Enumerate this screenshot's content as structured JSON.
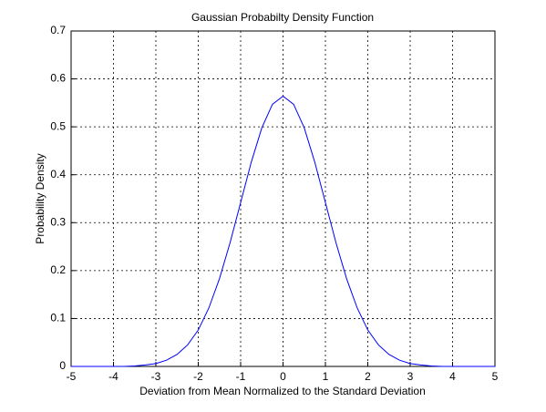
{
  "chart_data": {
    "type": "line",
    "title": "Gaussian Probabilty Density Function",
    "xlabel": "Deviation from Mean Normalized to the Standard Deviation",
    "ylabel": "Probability Density",
    "x": [
      -5,
      -4.75,
      -4.5,
      -4.25,
      -4,
      -3.75,
      -3.5,
      -3.25,
      -3,
      -2.75,
      -2.5,
      -2.25,
      -2,
      -1.75,
      -1.5,
      -1.25,
      -1,
      -0.75,
      -0.5,
      -0.25,
      0,
      0.25,
      0.5,
      0.75,
      1,
      1.25,
      1.5,
      1.75,
      2,
      2.25,
      2.5,
      2.75,
      3,
      3.25,
      3.5,
      3.75,
      4,
      4.25,
      4.5,
      4.75,
      5
    ],
    "series": [
      {
        "name": "pdf",
        "color": "#0000ff",
        "values": [
          0,
          0,
          0,
          0,
          0,
          0,
          0.001,
          0.003,
          0.006,
          0.013,
          0.025,
          0.045,
          0.076,
          0.122,
          0.183,
          0.258,
          0.342,
          0.426,
          0.498,
          0.547,
          0.564,
          0.547,
          0.498,
          0.426,
          0.342,
          0.258,
          0.183,
          0.122,
          0.076,
          0.045,
          0.025,
          0.013,
          0.006,
          0.003,
          0.001,
          0,
          0,
          0,
          0,
          0,
          0
        ]
      }
    ],
    "xlim": [
      -5,
      5
    ],
    "xticks": [
      -5,
      -4,
      -3,
      -2,
      -1,
      0,
      1,
      2,
      3,
      4,
      5
    ],
    "ylim": [
      0,
      0.7
    ],
    "yticks": [
      0,
      0.1,
      0.2,
      0.3,
      0.4,
      0.5,
      0.6,
      0.7
    ],
    "grid": true
  }
}
